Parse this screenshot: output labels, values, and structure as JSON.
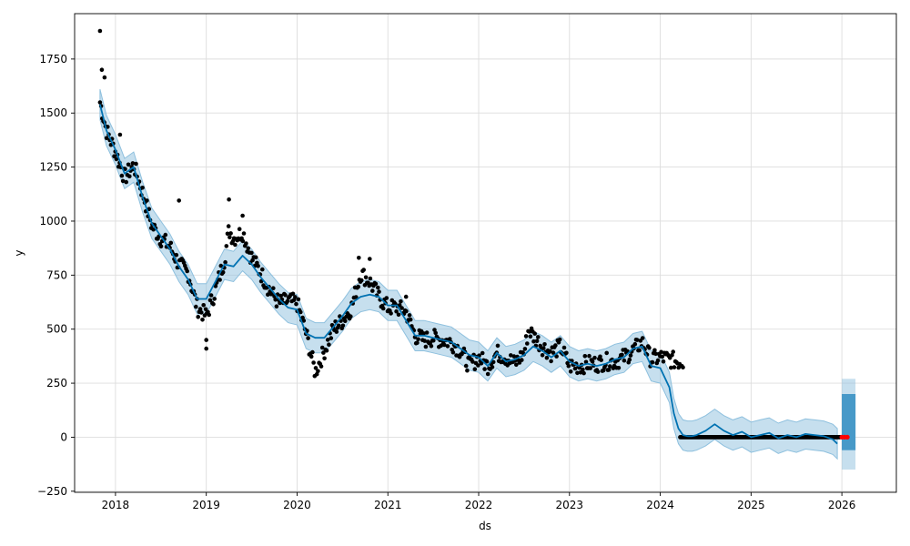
{
  "chart_data": {
    "type": "line",
    "title": "",
    "xlabel": "ds",
    "ylabel": "y",
    "xlim": [
      2017.55,
      2026.6
    ],
    "ylim": [
      -255,
      1960
    ],
    "grid": true,
    "x_ticks": [
      "2018",
      "2019",
      "2020",
      "2021",
      "2022",
      "2023",
      "2024",
      "2025",
      "2026"
    ],
    "y_ticks": [
      "−250",
      "0",
      "250",
      "500",
      "750",
      "1000",
      "1250",
      "1500",
      "1750"
    ],
    "colors": {
      "observed": "#000000",
      "forecast": "#0072B2",
      "interval": "#8EC0DE",
      "recent": "#FF0000"
    },
    "series": [
      {
        "kind": "forecast",
        "x": [
          2017.83,
          2017.9,
          2018.0,
          2018.1,
          2018.2,
          2018.3,
          2018.4,
          2018.5,
          2018.6,
          2018.7,
          2018.8,
          2018.9,
          2019.0,
          2019.1,
          2019.2,
          2019.3,
          2019.4,
          2019.5,
          2019.6,
          2019.7,
          2019.8,
          2019.9,
          2020.0,
          2020.1,
          2020.2,
          2020.3,
          2020.4,
          2020.5,
          2020.6,
          2020.7,
          2020.8,
          2020.9,
          2021.0,
          2021.1,
          2021.2,
          2021.3,
          2021.4,
          2021.5,
          2021.6,
          2021.7,
          2021.8,
          2021.9,
          2022.0,
          2022.1,
          2022.2,
          2022.3,
          2022.4,
          2022.5,
          2022.6,
          2022.7,
          2022.8,
          2022.9,
          2023.0,
          2023.1,
          2023.2,
          2023.3,
          2023.4,
          2023.5,
          2023.6,
          2023.7,
          2023.8,
          2023.9,
          2024.0,
          2024.1,
          2024.15,
          2024.2,
          2024.25,
          2024.3,
          2024.35,
          2024.4,
          2024.5,
          2024.6,
          2024.7,
          2024.8,
          2024.9,
          2025.0,
          2025.1,
          2025.2,
          2025.3,
          2025.4,
          2025.5,
          2025.6,
          2025.7,
          2025.8,
          2025.9,
          2025.95
        ],
        "y": [
          1540,
          1420,
          1330,
          1220,
          1250,
          1110,
          990,
          930,
          870,
          790,
          730,
          640,
          640,
          720,
          800,
          790,
          840,
          800,
          740,
          690,
          640,
          600,
          590,
          480,
          460,
          460,
          510,
          560,
          620,
          650,
          660,
          650,
          610,
          610,
          540,
          470,
          470,
          460,
          450,
          440,
          410,
          380,
          370,
          330,
          390,
          350,
          360,
          380,
          420,
          400,
          370,
          400,
          350,
          330,
          340,
          330,
          340,
          360,
          370,
          410,
          420,
          330,
          320,
          230,
          110,
          40,
          10,
          5,
          5,
          10,
          30,
          60,
          30,
          10,
          25,
          0,
          10,
          20,
          -5,
          10,
          0,
          15,
          10,
          5,
          -10,
          -30
        ]
      }
    ],
    "interval_halfwidth": 70,
    "observed_mean": {
      "x": [
        2017.83,
        2017.9,
        2018.0,
        2018.1,
        2018.2,
        2018.3,
        2018.4,
        2018.5,
        2018.6,
        2018.7,
        2018.8,
        2018.9,
        2019.0,
        2019.1,
        2019.2,
        2019.25,
        2019.3,
        2019.4,
        2019.5,
        2019.6,
        2019.7,
        2019.8,
        2019.9,
        2020.0,
        2020.1,
        2020.2,
        2020.3,
        2020.4,
        2020.5,
        2020.6,
        2020.7,
        2020.8,
        2020.9,
        2021.0,
        2021.1,
        2021.2,
        2021.3,
        2021.4,
        2021.5,
        2021.6,
        2021.7,
        2021.8,
        2021.9,
        2022.0,
        2022.1,
        2022.2,
        2022.3,
        2022.4,
        2022.5,
        2022.55,
        2022.6,
        2022.7,
        2022.8,
        2022.9,
        2023.0,
        2023.1,
        2023.2,
        2023.3,
        2023.4,
        2023.5,
        2023.6,
        2023.7,
        2023.8,
        2023.9,
        2024.0,
        2024.1,
        2024.2,
        2024.25
      ],
      "y": [
        1550,
        1420,
        1320,
        1200,
        1260,
        1130,
        980,
        920,
        880,
        800,
        760,
        600,
        560,
        680,
        820,
        960,
        920,
        950,
        830,
        760,
        680,
        620,
        630,
        620,
        480,
        300,
        400,
        500,
        540,
        600,
        760,
        720,
        650,
        600,
        600,
        580,
        470,
        450,
        460,
        450,
        440,
        400,
        330,
        370,
        330,
        390,
        370,
        340,
        390,
        500,
        470,
        420,
        390,
        420,
        330,
        330,
        340,
        340,
        350,
        350,
        370,
        400,
        440,
        360,
        370,
        360,
        350,
        350
      ]
    },
    "observed_flat": {
      "x_start": 2024.22,
      "x_end": 2025.98,
      "y": 0
    },
    "recent_points": {
      "x": [
        2026.0,
        2026.03,
        2026.06
      ],
      "y": [
        0,
        0,
        0
      ]
    },
    "forecast_tail": {
      "x_start": 2026.0,
      "x_end": 2026.15,
      "y_low": -60,
      "y_high": 200
    },
    "outliers": {
      "x": [
        2017.83,
        2017.85,
        2017.88,
        2018.05,
        2019.0,
        2019.0,
        2019.25,
        2018.7,
        2019.4,
        2020.68,
        2020.8,
        2021.2
      ],
      "y": [
        1880,
        1700,
        1665,
        1400,
        410,
        450,
        1100,
        1095,
        1025,
        830,
        825,
        650
      ]
    }
  }
}
